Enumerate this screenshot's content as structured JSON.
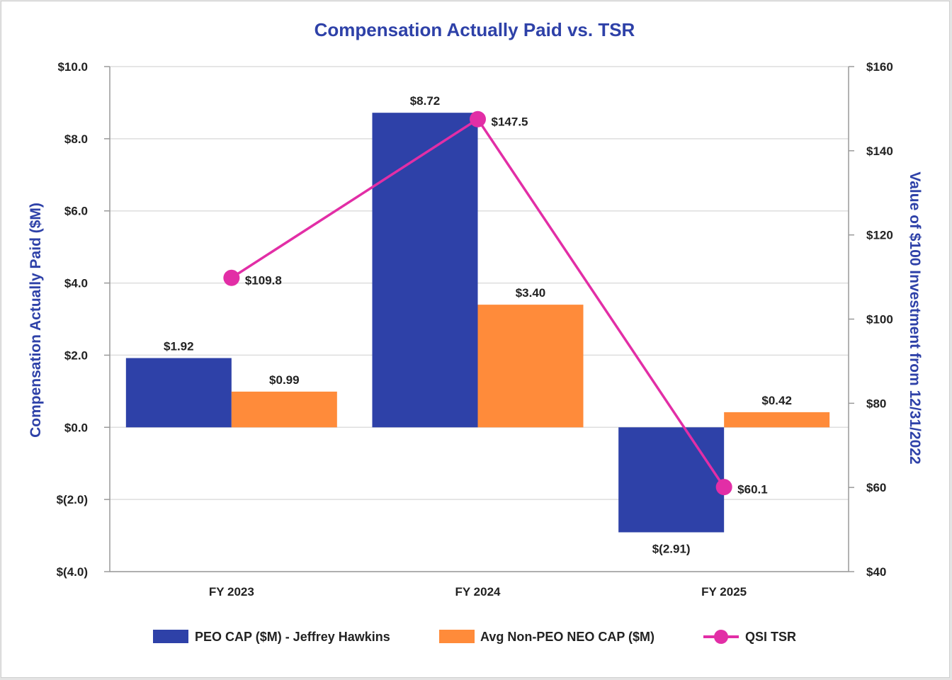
{
  "chart_data": {
    "type": "bar",
    "title": "Compensation Actually Paid vs. TSR",
    "categories": [
      "FY 2023",
      "FY 2024",
      "FY 2025"
    ],
    "ylabel": "Compensation Actually Paid ($M)",
    "y2label": "Value of $100 Investment from 12/31/2022",
    "ylim": [
      -4,
      10
    ],
    "y2lim": [
      40,
      160
    ],
    "yticks": [
      {
        "value": 10,
        "label": "$10.0"
      },
      {
        "value": 8,
        "label": "$8.0"
      },
      {
        "value": 6,
        "label": "$6.0"
      },
      {
        "value": 4,
        "label": "$4.0"
      },
      {
        "value": 2,
        "label": "$2.0"
      },
      {
        "value": 0,
        "label": "$0.0"
      },
      {
        "value": -2,
        "label": "$(2.0)"
      },
      {
        "value": -4,
        "label": "$(4.0)"
      }
    ],
    "y2ticks": [
      {
        "value": 160,
        "label": "$160"
      },
      {
        "value": 140,
        "label": "$140"
      },
      {
        "value": 120,
        "label": "$120"
      },
      {
        "value": 100,
        "label": "$100"
      },
      {
        "value": 80,
        "label": "$80"
      },
      {
        "value": 60,
        "label": "$60"
      },
      {
        "value": 40,
        "label": "$40"
      }
    ],
    "series": [
      {
        "name": "PEO CAP ($M) - Jeffrey Hawkins",
        "kind": "bar",
        "axis": "left",
        "color": "#2e41a8",
        "values": [
          1.92,
          8.72,
          -2.91
        ],
        "labels": [
          "$1.92",
          "$8.72",
          "$(2.91)"
        ]
      },
      {
        "name": "Avg Non-PEO NEO CAP ($M)",
        "kind": "bar",
        "axis": "left",
        "color": "#ff8b3a",
        "values": [
          0.99,
          3.4,
          0.42
        ],
        "labels": [
          "$0.99",
          "$3.40",
          "$0.42"
        ]
      },
      {
        "name": "QSI TSR",
        "kind": "line",
        "axis": "right",
        "color": "#e22ea6",
        "values": [
          109.8,
          147.5,
          60.1
        ],
        "labels": [
          "$109.8",
          "$147.5",
          "$60.1"
        ]
      }
    ],
    "legend_position": "bottom",
    "grid": true
  }
}
